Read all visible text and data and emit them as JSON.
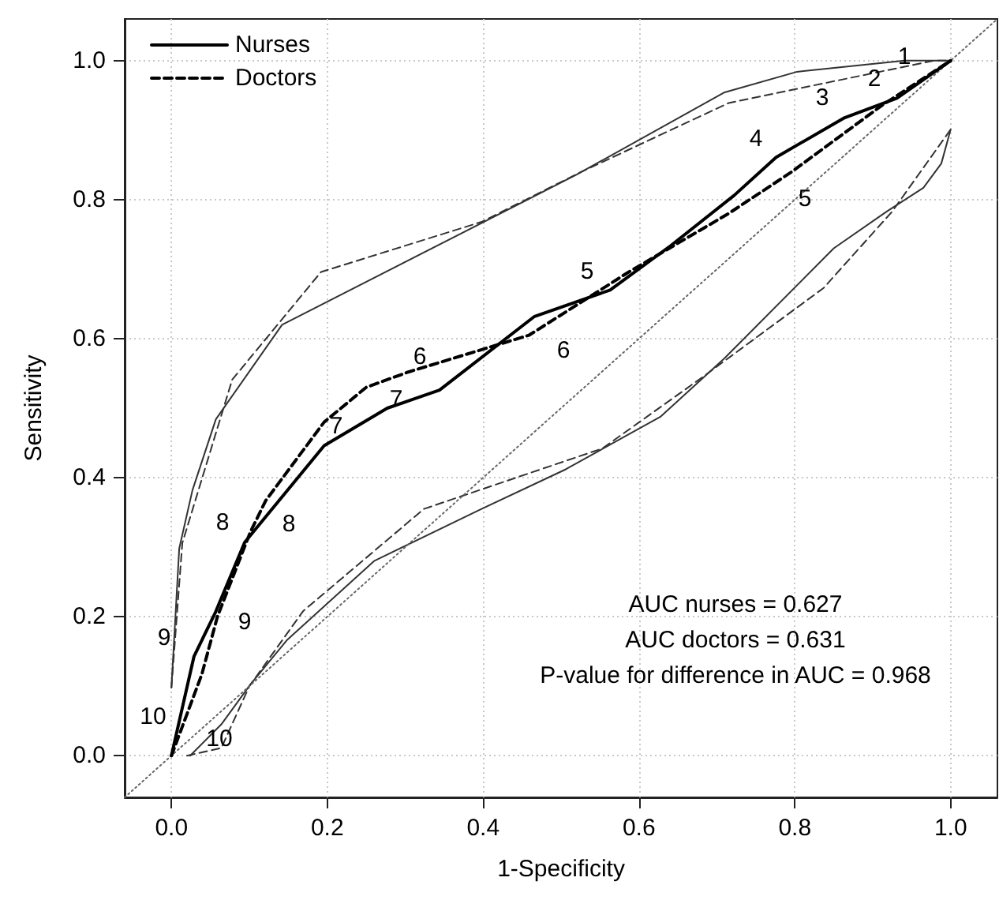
{
  "chart_data": {
    "type": "line",
    "xlabel": "1-Specificity",
    "ylabel": "Sensitivity",
    "xlim": [
      -0.06,
      1.06
    ],
    "ylim": [
      -0.06,
      1.06
    ],
    "xticks": [
      {
        "value": 0,
        "label": "0.0"
      },
      0.2,
      0.4,
      0.6,
      0.8,
      {
        "value": 1,
        "label": "1.0"
      }
    ],
    "yticks": [
      {
        "value": 0,
        "label": "0.0"
      },
      0.2,
      0.4,
      0.6,
      0.8,
      {
        "value": 1,
        "label": "1.0"
      }
    ],
    "grid": true,
    "legend": "top left",
    "marker": "none",
    "series": [
      {
        "name": "Nurses",
        "color": "#000000",
        "line_style": "solid",
        "x": [
          0,
          0.029,
          0.056,
          0.094,
          0.196,
          0.277,
          0.344,
          0.466,
          0.563,
          0.641,
          0.722,
          0.776,
          0.864,
          0.931,
          1
        ],
        "values": [
          0,
          0.143,
          0.205,
          0.307,
          0.446,
          0.5,
          0.526,
          0.632,
          0.67,
          0.734,
          0.806,
          0.861,
          0.918,
          0.946,
          1
        ]
      },
      {
        "name": "Doctors",
        "color": "#000000",
        "line_style": "dashed",
        "x": [
          0,
          0.039,
          0.059,
          0.101,
          0.121,
          0.196,
          0.25,
          0.304,
          0.459,
          0.587,
          0.715,
          0.796,
          0.911,
          1
        ],
        "values": [
          0,
          0.117,
          0.2,
          0.321,
          0.367,
          0.48,
          0.53,
          0.552,
          0.605,
          0.696,
          0.78,
          0.84,
          0.935,
          1
        ]
      },
      {
        "color": "#333333",
        "line_style": "solid",
        "x": [
          0,
          0.01,
          0.027,
          0.057,
          0.142,
          0.52,
          0.709,
          0.803,
          0.941,
          0.98,
          1
        ],
        "values": [
          0.098,
          0.298,
          0.382,
          0.484,
          0.62,
          0.836,
          0.954,
          0.984,
          1,
          1,
          1
        ]
      },
      {
        "color": "#333333",
        "line_style": "dashed",
        "x": [
          0,
          0.014,
          0.078,
          0.192,
          0.398,
          0.526,
          0.715,
          0.978,
          1
        ],
        "values": [
          0.098,
          0.306,
          0.541,
          0.696,
          0.768,
          0.84,
          0.939,
          1,
          1
        ]
      },
      {
        "color": "#333333",
        "line_style": "solid",
        "x": [
          0.024,
          0.064,
          0.101,
          0.148,
          0.26,
          0.398,
          0.506,
          0.628,
          0.709,
          0.85,
          0.918,
          0.965,
          0.988,
          1
        ],
        "values": [
          0,
          0.045,
          0.102,
          0.166,
          0.28,
          0.355,
          0.412,
          0.488,
          0.571,
          0.73,
          0.783,
          0.817,
          0.852,
          0.901
        ]
      },
      {
        "color": "#333333",
        "line_style": "dashed",
        "x": [
          0.02,
          0.064,
          0.1,
          0.169,
          0.324,
          0.445,
          0.553,
          0.682,
          0.837,
          0.925,
          1
        ],
        "values": [
          0,
          0.011,
          0.1,
          0.208,
          0.355,
          0.401,
          0.442,
          0.545,
          0.673,
          0.783,
          0.901
        ]
      },
      {
        "color": "#666666",
        "line_style": "dotted",
        "x": [
          -0.06,
          1.06
        ],
        "values": [
          -0.06,
          1.06
        ]
      }
    ],
    "annotations": [
      "1",
      "2",
      "3",
      "4",
      "5",
      "5",
      "6",
      "6",
      "7",
      "7",
      "8",
      "8",
      "9",
      "9",
      "10",
      "10",
      "AUC nurses = 0.627",
      "AUC doctors = 0.631",
      "P-value for difference in AUC = 0.968"
    ]
  }
}
